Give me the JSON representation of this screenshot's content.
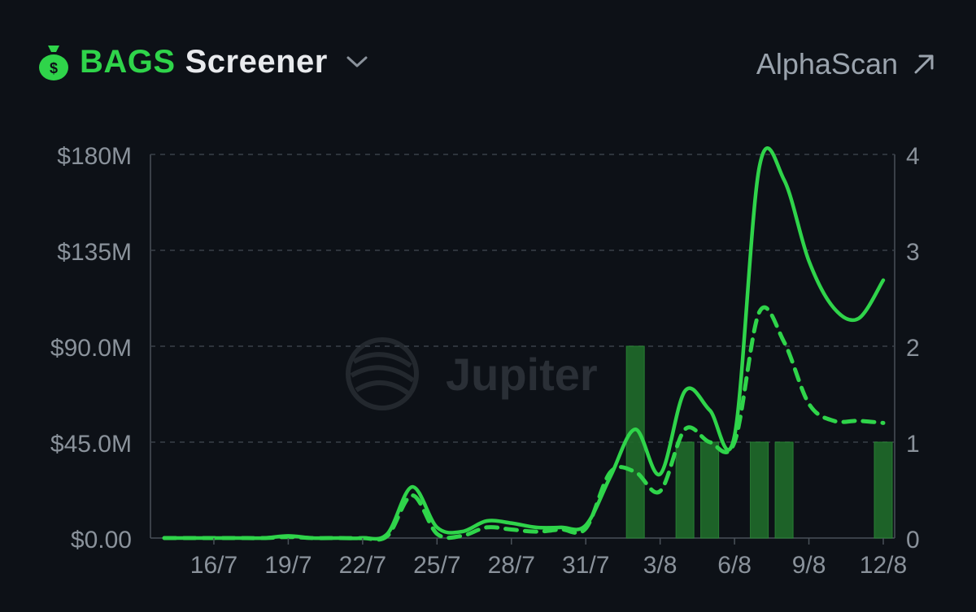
{
  "header": {
    "brand": "BAGS",
    "title": "Screener",
    "link_label": "AlphaScan",
    "icons": {
      "bag": "money-bag-icon",
      "dropdown": "chevron-down-icon",
      "link": "arrow-up-right-icon"
    }
  },
  "watermark": "Jupiter",
  "colors": {
    "accent": "#2fd44a",
    "bar": "#1f6b2a",
    "grid": "#3a4048",
    "text": "#8a929b",
    "background": "#0d1117"
  },
  "chart_data": {
    "type": "line",
    "x": [
      "14/7",
      "15/7",
      "16/7",
      "17/7",
      "18/7",
      "19/7",
      "20/7",
      "21/7",
      "22/7",
      "23/7",
      "24/7",
      "25/7",
      "26/7",
      "27/7",
      "28/7",
      "29/7",
      "30/7",
      "31/7",
      "1/8",
      "2/8",
      "3/8",
      "4/8",
      "5/8",
      "6/8",
      "7/8",
      "8/8",
      "9/8",
      "10/8",
      "11/8",
      "12/8"
    ],
    "x_tick_labels": [
      "16/7",
      "19/7",
      "22/7",
      "25/7",
      "28/7",
      "31/7",
      "3/8",
      "6/8",
      "9/8",
      "12/8"
    ],
    "series": [
      {
        "style": "solid",
        "axis": "left",
        "values": [
          0,
          0,
          0,
          0,
          0,
          1,
          0,
          0,
          0,
          2,
          24,
          5,
          3,
          8,
          7,
          5,
          5,
          6,
          29,
          51,
          30,
          69,
          60,
          48,
          174,
          168,
          130,
          108,
          103,
          121
        ]
      },
      {
        "style": "dashed",
        "axis": "left",
        "values": [
          0,
          0,
          0,
          0,
          0,
          0.5,
          0,
          0,
          0,
          1,
          20,
          2,
          1,
          5,
          4,
          3,
          4,
          4.5,
          31,
          31,
          22,
          51,
          45,
          45,
          106,
          92,
          63,
          55,
          55,
          54
        ]
      },
      {
        "style": "bar",
        "axis": "right",
        "values": [
          0,
          0,
          0,
          0,
          0,
          0,
          0,
          0,
          0,
          0,
          0,
          0,
          0,
          0,
          0,
          0,
          0,
          0,
          0,
          2,
          0,
          1,
          1,
          0,
          1,
          1,
          0,
          0,
          0,
          1
        ]
      }
    ],
    "y_left": {
      "ylim": [
        0,
        180
      ],
      "tick_labels": [
        "$0.00",
        "$45.0M",
        "$90.0M",
        "$135M",
        "$180M"
      ],
      "tick_values": [
        0,
        45,
        90,
        135,
        180
      ]
    },
    "y_right": {
      "ylim": [
        0,
        4
      ],
      "tick_labels": [
        "0",
        "1",
        "2",
        "3",
        "4"
      ],
      "tick_values": [
        0,
        1,
        2,
        3,
        4
      ]
    },
    "grid": true
  }
}
